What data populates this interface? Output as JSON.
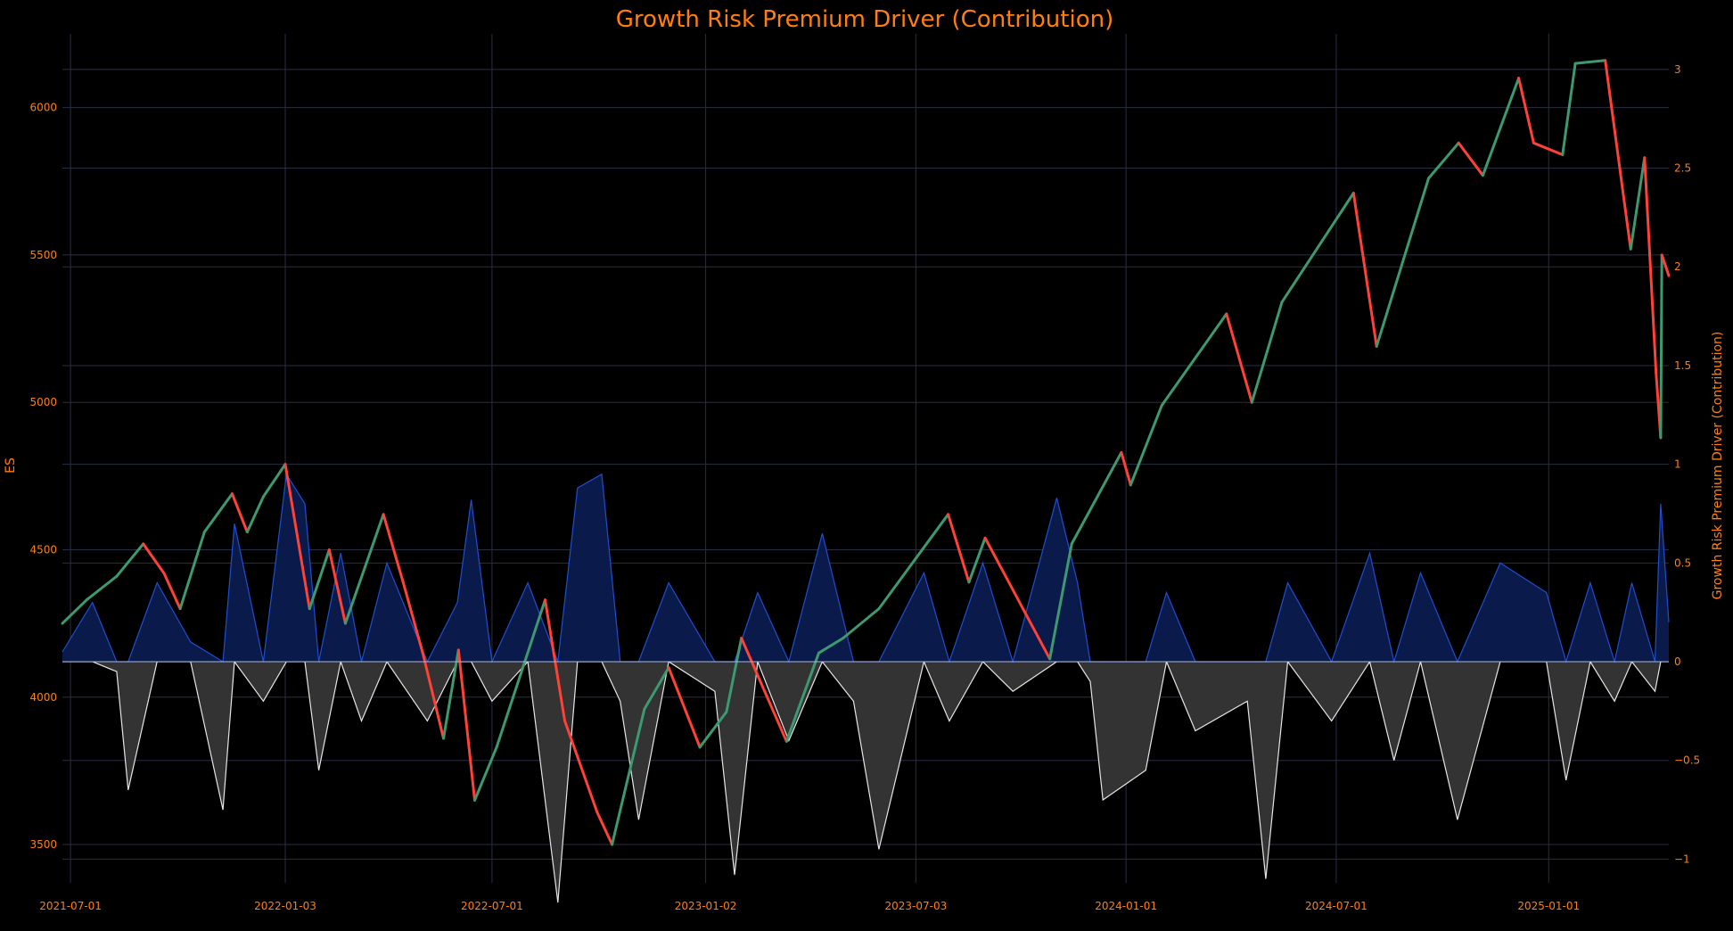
{
  "chart_data": {
    "type": "line",
    "title": "Growth Risk Premium Driver (Contribution)",
    "ylabel_left": "ES",
    "ylabel_right": "Growth Risk Premium Driver (Contribution)",
    "xlim": [
      "2021-06-24",
      "2025-04-15"
    ],
    "ylim_left": [
      3370,
      6250
    ],
    "ylim_right": [
      -1.12,
      3.18
    ],
    "x_ticks": [
      "2021-07-01",
      "2022-01-03",
      "2022-07-01",
      "2023-01-02",
      "2023-07-03",
      "2024-01-01",
      "2024-07-01",
      "2025-01-01"
    ],
    "y_ticks_left": [
      3500,
      4000,
      4500,
      5000,
      5500,
      6000
    ],
    "y_ticks_right": [
      -1,
      -0.5,
      0,
      0.5,
      1,
      1.5,
      2,
      2.5,
      3
    ],
    "y_tick_labels_right": [
      "−1",
      "−0.5",
      "0",
      "0.5",
      "1",
      "1.5",
      "2",
      "2.5",
      "3"
    ],
    "grid": true,
    "colors": {
      "up": "#3d9970",
      "down": "#ff4136",
      "positive_contribution": "#1f4fd1",
      "positive_fill": "#0a1a4a",
      "negative_contribution": "#e6e6e6",
      "negative_fill": "#333333",
      "grid": "#2a2e45",
      "text": "#ff7f0e"
    },
    "series": [
      {
        "type": "candlestick_close_path",
        "points": [
          [
            "2021-06-24",
            4250
          ],
          [
            "2021-07-15",
            4330
          ],
          [
            "2021-08-10",
            4410
          ],
          [
            "2021-09-02",
            4520
          ],
          [
            "2021-09-20",
            4420
          ],
          [
            "2021-10-04",
            4300
          ],
          [
            "2021-10-25",
            4560
          ],
          [
            "2021-11-18",
            4690
          ],
          [
            "2021-12-01",
            4560
          ],
          [
            "2021-12-15",
            4680
          ],
          [
            "2022-01-03",
            4790
          ],
          [
            "2022-01-24",
            4300
          ],
          [
            "2022-02-10",
            4500
          ],
          [
            "2022-02-24",
            4250
          ],
          [
            "2022-03-29",
            4620
          ],
          [
            "2022-04-15",
            4390
          ],
          [
            "2022-05-02",
            4150
          ],
          [
            "2022-05-20",
            3860
          ],
          [
            "2022-06-02",
            4160
          ],
          [
            "2022-06-16",
            3650
          ],
          [
            "2022-07-05",
            3830
          ],
          [
            "2022-08-16",
            4330
          ],
          [
            "2022-09-02",
            3920
          ],
          [
            "2022-09-30",
            3610
          ],
          [
            "2022-10-13",
            3500
          ],
          [
            "2022-11-10",
            3960
          ],
          [
            "2022-12-01",
            4100
          ],
          [
            "2022-12-28",
            3830
          ],
          [
            "2023-01-20",
            3950
          ],
          [
            "2023-02-02",
            4200
          ],
          [
            "2023-03-13",
            3850
          ],
          [
            "2023-04-10",
            4150
          ],
          [
            "2023-05-01",
            4200
          ],
          [
            "2023-06-01",
            4300
          ],
          [
            "2023-07-31",
            4620
          ],
          [
            "2023-08-18",
            4390
          ],
          [
            "2023-09-01",
            4540
          ],
          [
            "2023-10-27",
            4130
          ],
          [
            "2023-11-15",
            4520
          ],
          [
            "2023-12-28",
            4830
          ],
          [
            "2024-01-05",
            4720
          ],
          [
            "2024-02-01",
            4990
          ],
          [
            "2024-03-28",
            5300
          ],
          [
            "2024-04-19",
            5000
          ],
          [
            "2024-05-15",
            5340
          ],
          [
            "2024-07-16",
            5710
          ],
          [
            "2024-08-05",
            5190
          ],
          [
            "2024-09-19",
            5760
          ],
          [
            "2024-10-15",
            5880
          ],
          [
            "2024-11-05",
            5770
          ],
          [
            "2024-12-06",
            6100
          ],
          [
            "2024-12-19",
            5880
          ],
          [
            "2025-01-13",
            5840
          ],
          [
            "2025-01-24",
            6150
          ],
          [
            "2025-02-19",
            6160
          ],
          [
            "2025-03-13",
            5520
          ],
          [
            "2025-03-25",
            5830
          ],
          [
            "2025-04-04",
            5100
          ],
          [
            "2025-04-08",
            4880
          ],
          [
            "2025-04-09",
            5500
          ],
          [
            "2025-04-15",
            5430
          ]
        ]
      },
      {
        "name": "Growth Risk Premium Driver (Contribution)",
        "points": [
          [
            "2021-06-24",
            0.05
          ],
          [
            "2021-07-20",
            0.3
          ],
          [
            "2021-08-10",
            -0.05
          ],
          [
            "2021-08-20",
            -0.65
          ],
          [
            "2021-09-14",
            0.4
          ],
          [
            "2021-10-13",
            0.1
          ],
          [
            "2021-11-10",
            -0.75
          ],
          [
            "2021-11-20",
            0.7
          ],
          [
            "2021-12-15",
            -0.2
          ],
          [
            "2022-01-04",
            0.95
          ],
          [
            "2022-01-20",
            0.8
          ],
          [
            "2022-02-01",
            -0.55
          ],
          [
            "2022-02-20",
            0.55
          ],
          [
            "2022-03-10",
            -0.3
          ],
          [
            "2022-04-01",
            0.5
          ],
          [
            "2022-05-06",
            -0.3
          ],
          [
            "2022-06-01",
            0.3
          ],
          [
            "2022-06-13",
            0.82
          ],
          [
            "2022-07-01",
            -0.2
          ],
          [
            "2022-08-01",
            0.4
          ],
          [
            "2022-08-27",
            -1.22
          ],
          [
            "2022-09-13",
            0.88
          ],
          [
            "2022-10-04",
            0.95
          ],
          [
            "2022-10-20",
            -0.2
          ],
          [
            "2022-11-05",
            -0.8
          ],
          [
            "2022-12-01",
            0.4
          ],
          [
            "2023-01-10",
            -0.15
          ],
          [
            "2023-01-27",
            -1.08
          ],
          [
            "2023-02-16",
            0.35
          ],
          [
            "2023-03-15",
            -0.4
          ],
          [
            "2023-04-13",
            0.65
          ],
          [
            "2023-05-10",
            -0.2
          ],
          [
            "2023-06-01",
            -0.95
          ],
          [
            "2023-07-10",
            0.45
          ],
          [
            "2023-08-01",
            -0.3
          ],
          [
            "2023-08-30",
            0.5
          ],
          [
            "2023-09-25",
            -0.15
          ],
          [
            "2023-11-02",
            0.83
          ],
          [
            "2023-11-20",
            0.4
          ],
          [
            "2023-12-01",
            -0.1
          ],
          [
            "2023-12-12",
            -0.7
          ],
          [
            "2024-01-18",
            -0.55
          ],
          [
            "2024-02-05",
            0.35
          ],
          [
            "2024-03-01",
            -0.35
          ],
          [
            "2024-04-15",
            -0.2
          ],
          [
            "2024-05-01",
            -1.1
          ],
          [
            "2024-05-20",
            0.4
          ],
          [
            "2024-06-27",
            -0.3
          ],
          [
            "2024-07-30",
            0.55
          ],
          [
            "2024-08-20",
            -0.5
          ],
          [
            "2024-09-12",
            0.45
          ],
          [
            "2024-10-14",
            -0.8
          ],
          [
            "2024-11-20",
            0.5
          ],
          [
            "2024-12-30",
            0.35
          ],
          [
            "2025-01-16",
            -0.6
          ],
          [
            "2025-02-06",
            0.4
          ],
          [
            "2025-02-27",
            -0.2
          ],
          [
            "2025-03-14",
            0.4
          ],
          [
            "2025-04-03",
            -0.15
          ],
          [
            "2025-04-08",
            0.8
          ],
          [
            "2025-04-15",
            0.2
          ]
        ]
      }
    ]
  }
}
